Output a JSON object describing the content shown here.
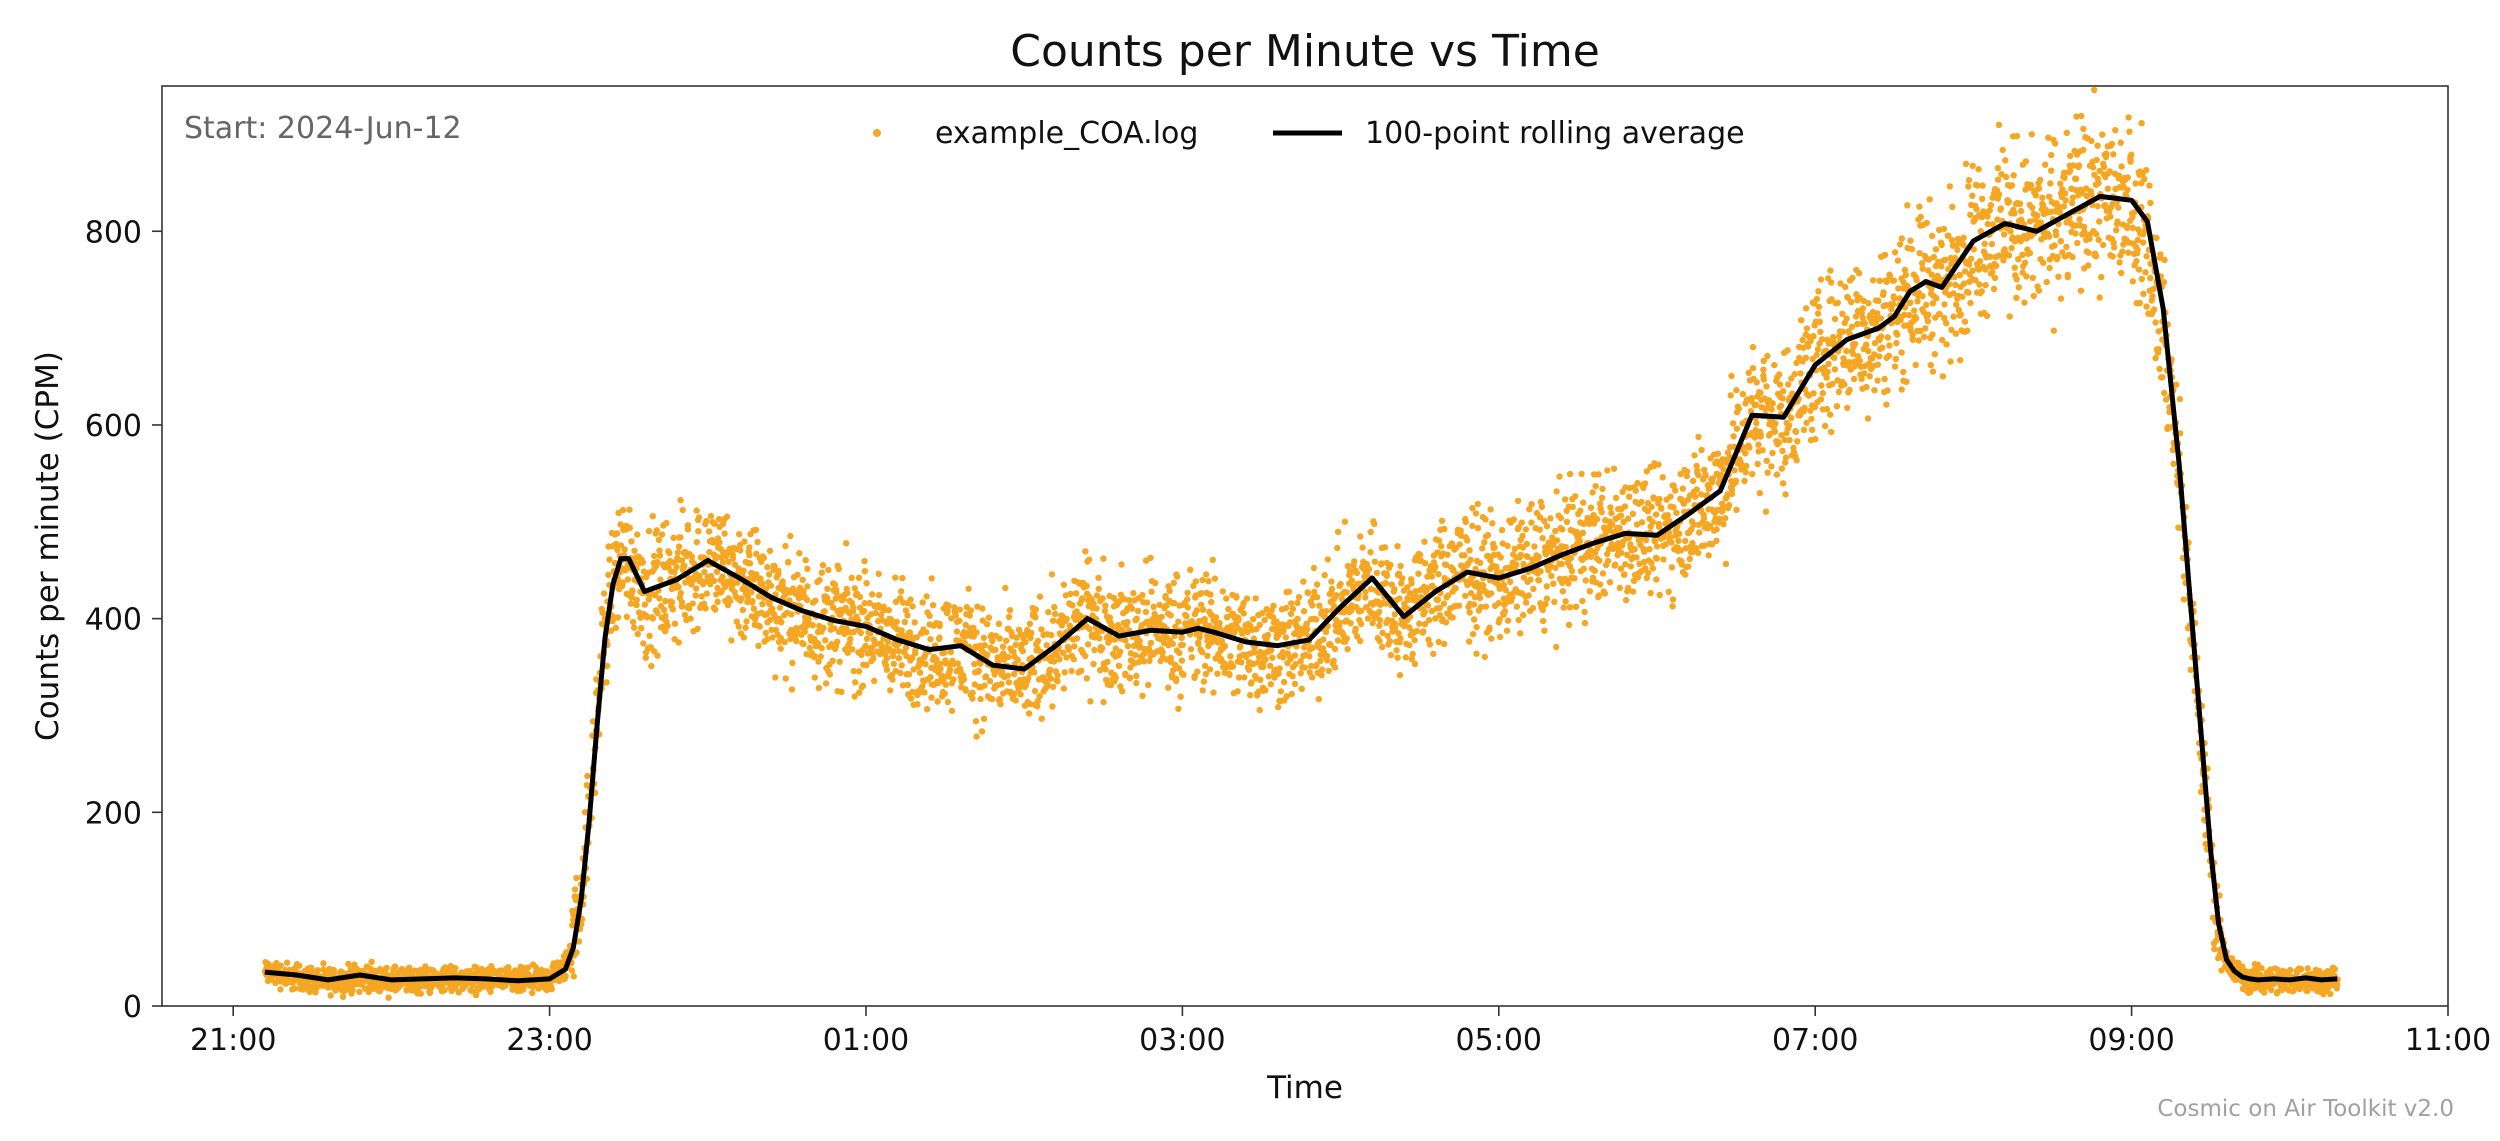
{
  "chart_data": {
    "type": "scatter",
    "title": "Counts per Minute vs Time",
    "xlabel": "Time",
    "ylabel": "Counts per minute (CPM)",
    "x_unit": "hours since 21:00 on start date",
    "xlim": [
      -0.45,
      14.0
    ],
    "ylim": [
      0,
      950
    ],
    "grid": false,
    "legend_position": "top-center",
    "annotation": "Start: 2024-Jun-12",
    "x_ticks": [
      {
        "value": 0,
        "label": "21:00"
      },
      {
        "value": 2,
        "label": "23:00"
      },
      {
        "value": 4,
        "label": "01:00"
      },
      {
        "value": 6,
        "label": "03:00"
      },
      {
        "value": 8,
        "label": "05:00"
      },
      {
        "value": 10,
        "label": "07:00"
      },
      {
        "value": 12,
        "label": "09:00"
      },
      {
        "value": 14,
        "label": "11:00"
      }
    ],
    "y_ticks": [
      {
        "value": 0,
        "label": "0"
      },
      {
        "value": 200,
        "label": "200"
      },
      {
        "value": 400,
        "label": "400"
      },
      {
        "value": 600,
        "label": "600"
      },
      {
        "value": 800,
        "label": "800"
      }
    ],
    "series": [
      {
        "name": "example_COA.log",
        "kind": "scatter",
        "color": "#f5a623",
        "spread": 25,
        "x": [
          0.2,
          0.4,
          0.6,
          0.8,
          1.0,
          1.2,
          1.4,
          1.6,
          1.8,
          2.0,
          2.1,
          2.15,
          2.2,
          2.25,
          2.3,
          2.35,
          2.4,
          2.45,
          2.5,
          2.6,
          2.8,
          3.0,
          3.2,
          3.4,
          3.6,
          3.8,
          4.0,
          4.2,
          4.4,
          4.6,
          4.8,
          5.0,
          5.2,
          5.4,
          5.6,
          5.8,
          6.0,
          6.1,
          6.2,
          6.4,
          6.6,
          6.8,
          7.0,
          7.2,
          7.4,
          7.6,
          7.8,
          8.0,
          8.2,
          8.4,
          8.6,
          8.8,
          9.0,
          9.2,
          9.4,
          9.6,
          9.8,
          10.0,
          10.2,
          10.4,
          10.5,
          10.6,
          10.7,
          10.8,
          11.0,
          11.2,
          11.4,
          11.6,
          11.8,
          12.0,
          12.1,
          12.2,
          12.3,
          12.35,
          12.4,
          12.45,
          12.5,
          12.55,
          12.6,
          12.65,
          12.7,
          12.75,
          12.8,
          12.9,
          13.0,
          13.1,
          13.2,
          13.3
        ],
        "values": [
          35,
          30,
          25,
          30,
          25,
          27,
          28,
          27,
          25,
          27,
          40,
          70,
          120,
          200,
          300,
          390,
          440,
          465,
          460,
          425,
          440,
          460,
          440,
          420,
          405,
          395,
          390,
          375,
          365,
          370,
          350,
          345,
          375,
          400,
          380,
          390,
          385,
          390,
          385,
          375,
          370,
          378,
          410,
          440,
          400,
          430,
          450,
          440,
          455,
          465,
          480,
          490,
          485,
          510,
          530,
          610,
          605,
          665,
          690,
          700,
          715,
          740,
          750,
          740,
          790,
          810,
          800,
          820,
          835,
          830,
          800,
          700,
          550,
          450,
          350,
          250,
          150,
          80,
          45,
          35,
          30,
          28,
          27,
          28,
          27,
          28,
          27,
          28
        ]
      },
      {
        "name": "100-point rolling average",
        "kind": "line",
        "color": "#000000",
        "x": [
          0.2,
          0.4,
          0.6,
          0.8,
          1.0,
          1.2,
          1.4,
          1.6,
          1.8,
          2.0,
          2.1,
          2.15,
          2.2,
          2.25,
          2.3,
          2.35,
          2.4,
          2.45,
          2.5,
          2.6,
          2.8,
          3.0,
          3.2,
          3.4,
          3.6,
          3.8,
          4.0,
          4.2,
          4.4,
          4.6,
          4.8,
          5.0,
          5.2,
          5.4,
          5.6,
          5.8,
          6.0,
          6.1,
          6.2,
          6.4,
          6.6,
          6.8,
          7.0,
          7.2,
          7.4,
          7.6,
          7.8,
          8.0,
          8.2,
          8.4,
          8.6,
          8.8,
          9.0,
          9.2,
          9.4,
          9.6,
          9.8,
          10.0,
          10.2,
          10.4,
          10.5,
          10.6,
          10.7,
          10.8,
          11.0,
          11.2,
          11.4,
          11.6,
          11.8,
          12.0,
          12.1,
          12.2,
          12.3,
          12.35,
          12.4,
          12.45,
          12.5,
          12.55,
          12.6,
          12.65,
          12.7,
          12.75,
          12.8,
          12.9,
          13.0,
          13.1,
          13.2,
          13.3
        ],
        "values": [
          35,
          32,
          27,
          32,
          27,
          28,
          29,
          28,
          26,
          28,
          38,
          60,
          110,
          190,
          290,
          380,
          435,
          462,
          462,
          428,
          440,
          460,
          442,
          422,
          408,
          398,
          392,
          378,
          368,
          372,
          352,
          348,
          372,
          400,
          382,
          388,
          386,
          390,
          386,
          376,
          372,
          378,
          412,
          442,
          402,
          428,
          448,
          442,
          452,
          466,
          478,
          488,
          486,
          508,
          532,
          610,
          608,
          662,
          688,
          700,
          712,
          738,
          748,
          742,
          790,
          808,
          800,
          818,
          836,
          832,
          810,
          720,
          560,
          460,
          360,
          260,
          160,
          85,
          48,
          36,
          30,
          28,
          27,
          28,
          27,
          29,
          27,
          28
        ]
      }
    ]
  },
  "footer": {
    "credit": "Cosmic on Air Toolkit v2.0"
  }
}
